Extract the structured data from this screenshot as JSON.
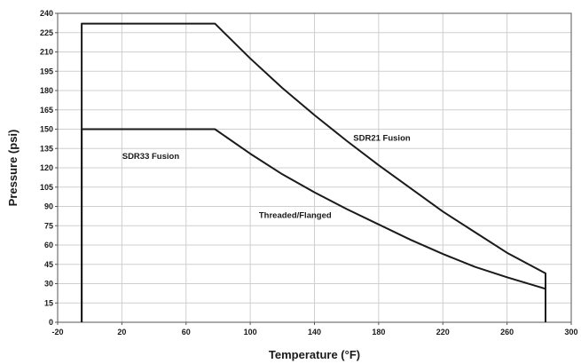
{
  "chart_data": {
    "type": "line",
    "title": "",
    "xlabel": "Temperature (°F)",
    "ylabel": "Pressure (psi)",
    "xlim": [
      -20,
      300
    ],
    "ylim": [
      0,
      240
    ],
    "x_ticks": [
      -20,
      20,
      60,
      100,
      140,
      180,
      220,
      260,
      300
    ],
    "y_ticks": [
      0,
      15,
      30,
      45,
      60,
      75,
      90,
      105,
      120,
      135,
      150,
      165,
      180,
      195,
      210,
      225,
      240
    ],
    "grid": true,
    "legend": "none",
    "series": [
      {
        "x": [
          -5,
          -5,
          78,
          100,
          120,
          140,
          160,
          180,
          200,
          220,
          240,
          260,
          284,
          284
        ],
        "y": [
          0,
          232,
          232,
          205,
          182,
          161,
          141,
          122,
          104,
          86,
          70,
          54,
          38,
          0
        ]
      },
      {
        "x": [
          -5,
          -5,
          78,
          100,
          120,
          140,
          160,
          180,
          200,
          220,
          240,
          260,
          284,
          284
        ],
        "y": [
          0,
          150,
          150,
          131,
          115,
          101,
          88,
          76,
          64,
          53,
          43,
          35,
          26,
          0
        ]
      }
    ],
    "annotations": [
      {
        "text": "SDR21 Fusion",
        "x": 182,
        "y": 141
      },
      {
        "text": "SDR33 Fusion",
        "x": 38,
        "y": 127
      },
      {
        "text": "Threaded/Flanged",
        "x": 128,
        "y": 81
      }
    ],
    "colors": {
      "line": "#1a1a1a",
      "grid": "#cfcfcf",
      "frame": "#555555"
    }
  }
}
